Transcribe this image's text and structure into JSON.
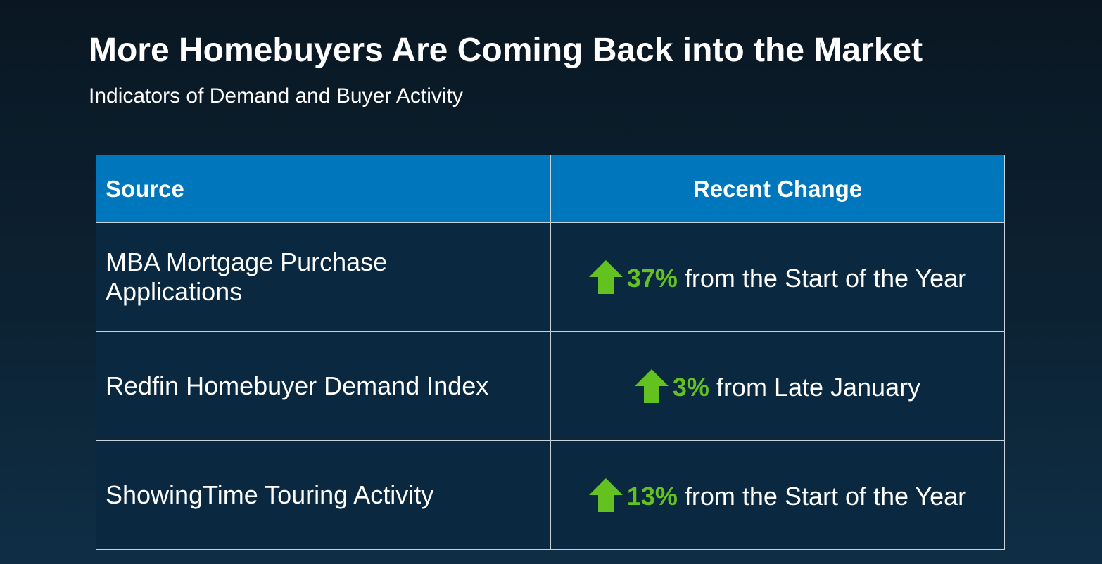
{
  "header": {
    "title": "More Homebuyers Are Coming Back into the Market",
    "subtitle": "Indicators of Demand and Buyer Activity"
  },
  "table": {
    "columns": [
      "Source",
      "Recent Change"
    ],
    "rows": [
      {
        "source": "MBA Mortgage Purchase Applications",
        "change": "37%",
        "detail": "from the Start of the Year"
      },
      {
        "source": "Redfin Homebuyer Demand Index",
        "change": "3%",
        "detail": "from Late January"
      },
      {
        "source": "ShowingTime Touring Activity",
        "change": "13%",
        "detail": "from the Start of the Year"
      }
    ]
  }
}
